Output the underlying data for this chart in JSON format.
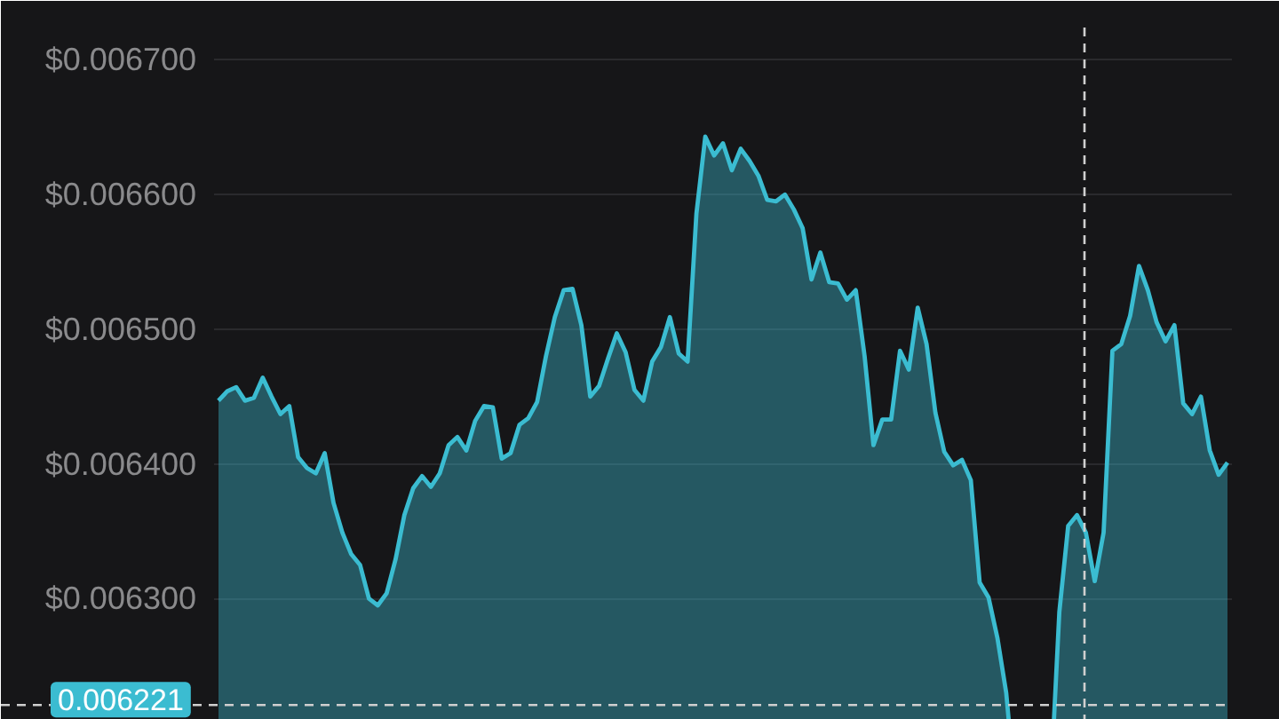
{
  "chart_data": {
    "type": "area",
    "categories": [
      null,
      null,
      null,
      null,
      null,
      null,
      null,
      null,
      null,
      null,
      null,
      null,
      null,
      null,
      null,
      null,
      null,
      null,
      null,
      null,
      null,
      null,
      null,
      null,
      null,
      null,
      null,
      null,
      null,
      null,
      null,
      null,
      null,
      null,
      null,
      null,
      null,
      null,
      null,
      null,
      null,
      null,
      null,
      null,
      null,
      null,
      null,
      null,
      null,
      null,
      null,
      null,
      null,
      null,
      null,
      null,
      null,
      null,
      null,
      null,
      null,
      null,
      null,
      null,
      null,
      null,
      null,
      null,
      null,
      null,
      null,
      null,
      null,
      null,
      null,
      null,
      null,
      null,
      null,
      null,
      null,
      null,
      null,
      null,
      null,
      null,
      null,
      null,
      null,
      null,
      null,
      null,
      null,
      null,
      null,
      null,
      null,
      null,
      null,
      null,
      null,
      null,
      null,
      null,
      null,
      null,
      null,
      null,
      null,
      null,
      null,
      null,
      null,
      null,
      null
    ],
    "series": [
      {
        "color": "#3bbcd1",
        "values": [
          0.006447,
          0.006454,
          0.006457,
          0.006447,
          0.006449,
          0.006464,
          0.00645,
          0.006437,
          0.006443,
          0.006405,
          0.006397,
          0.006393,
          0.006408,
          0.006371,
          0.006349,
          0.006333,
          0.006325,
          0.0063,
          0.006295,
          0.006304,
          0.006329,
          0.006362,
          0.006382,
          0.006391,
          0.006383,
          0.006393,
          0.006414,
          0.00642,
          0.00641,
          0.006432,
          0.006443,
          0.006442,
          0.006404,
          0.006408,
          0.006429,
          0.006434,
          0.006446,
          0.00648,
          0.006509,
          0.006529,
          0.00653,
          0.006503,
          0.00645,
          0.006458,
          0.006478,
          0.006497,
          0.006483,
          0.006455,
          0.006447,
          0.006476,
          0.006487,
          0.006509,
          0.006482,
          0.006476,
          0.006586,
          0.006643,
          0.006629,
          0.006638,
          0.006618,
          0.006634,
          0.006625,
          0.006614,
          0.006596,
          0.006595,
          0.0066,
          0.006589,
          0.006575,
          0.006537,
          0.006557,
          0.006535,
          0.006534,
          0.006522,
          0.006529,
          0.00648,
          0.006414,
          0.006433,
          0.006433,
          0.006484,
          0.00647,
          0.006516,
          0.006489,
          0.006438,
          0.006409,
          0.006399,
          0.006403,
          0.006388,
          0.006312,
          0.006301,
          0.006271,
          0.00623,
          null,
          null,
          null,
          null,
          null,
          0.00629,
          0.006354,
          0.006362,
          0.006349,
          0.006313,
          0.006349,
          0.006484,
          0.006489,
          0.00651,
          0.006547,
          0.006529,
          0.006505,
          0.006491,
          0.006503,
          0.006445,
          0.006437,
          0.00645,
          0.00641,
          0.006392,
          0.006401
        ]
      }
    ],
    "ylim": [
      0.00621,
      0.006724
    ],
    "yticks": [
      {
        "value": 0.0063,
        "label": "$0.006300"
      },
      {
        "value": 0.0064,
        "label": "$0.006400"
      },
      {
        "value": 0.0065,
        "label": "$0.006500"
      },
      {
        "value": 0.0066,
        "label": "$0.006600"
      },
      {
        "value": 0.0067,
        "label": "$0.006700"
      }
    ],
    "grid": "y",
    "tick_labels": "y",
    "ref_lines": [
      {
        "axis": "y",
        "value": 0.006221,
        "label": "0.006221",
        "color": "#cfcfcf",
        "line_style": "dashed"
      }
    ]
  }
}
